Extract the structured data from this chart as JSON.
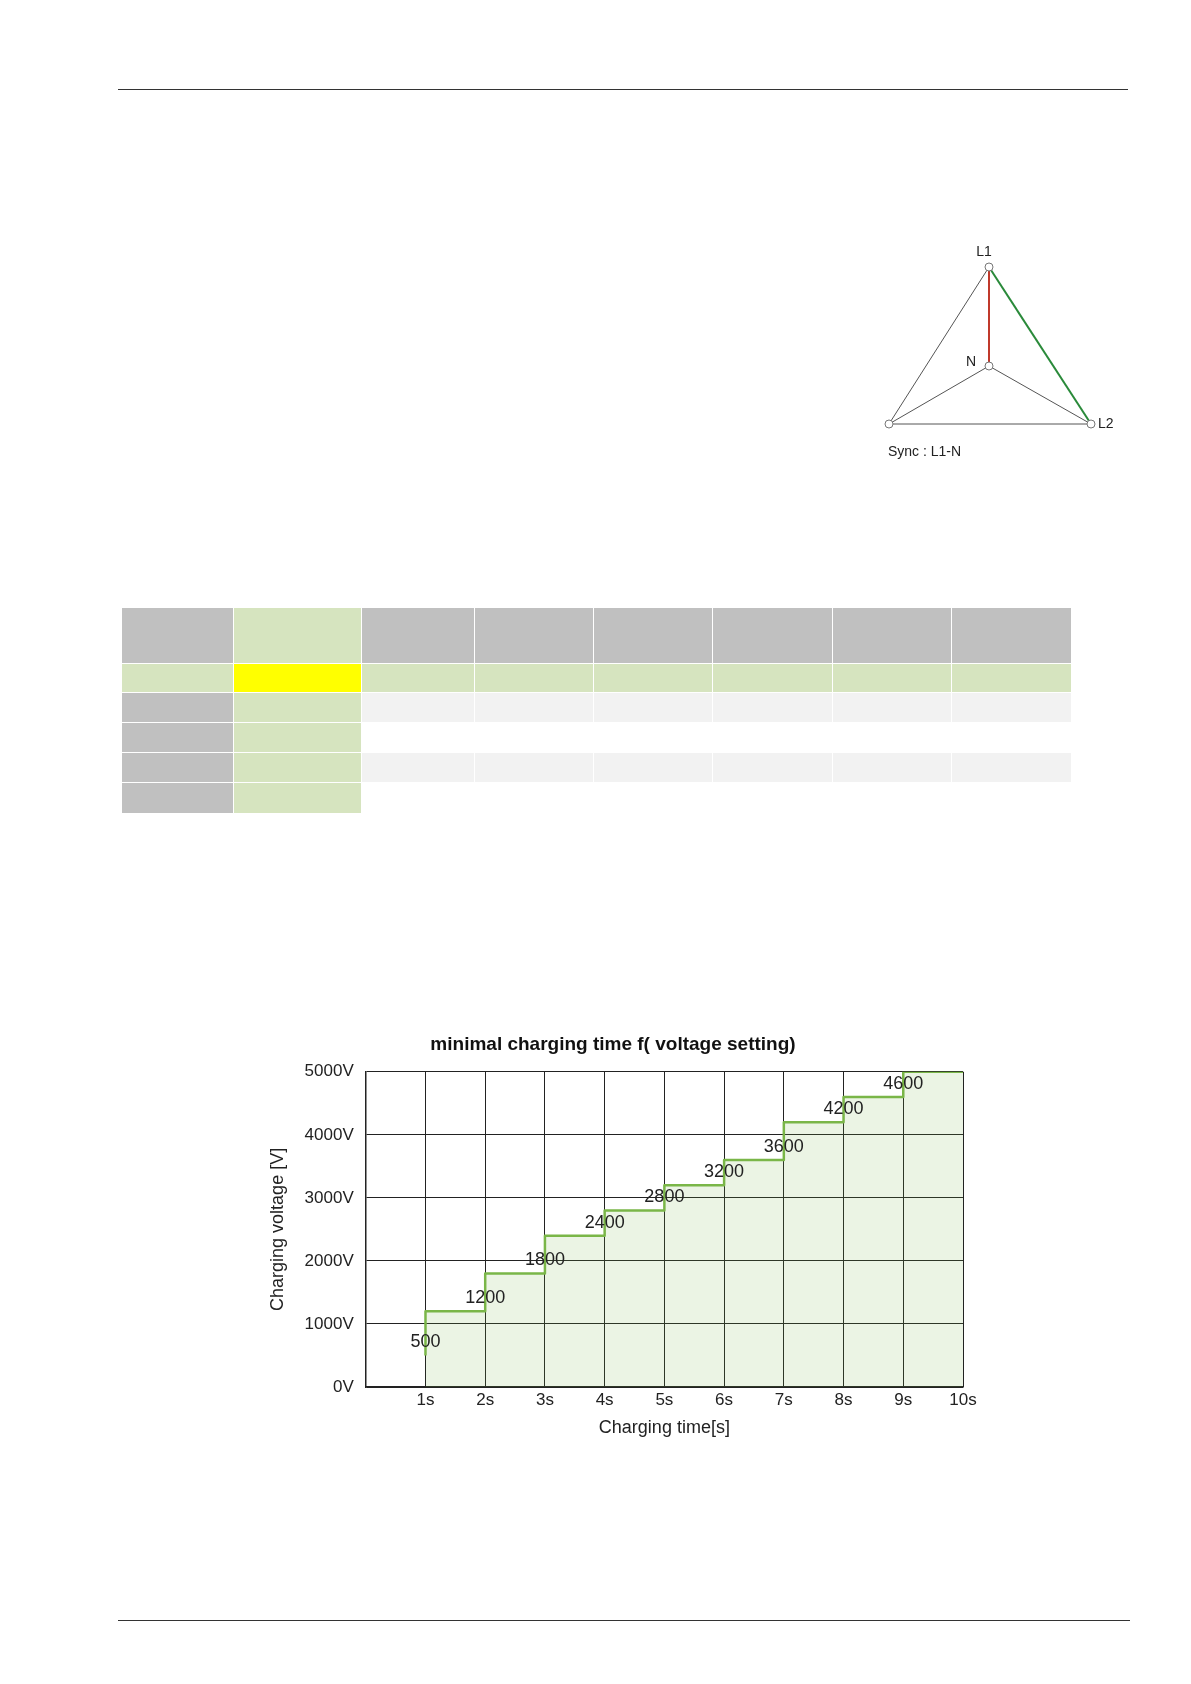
{
  "chart_data": [
    {
      "type": "other",
      "annotations": [
        "L1",
        "N",
        "L2",
        "Sync : L1-N"
      ]
    },
    {
      "type": "step",
      "title": "minimal charging time f( voltage setting)",
      "xlabel": "Charging time[s]",
      "ylabel": "Charging voltage [V]",
      "x": [
        1,
        2,
        3,
        4,
        5,
        6,
        7,
        8,
        9,
        10
      ],
      "series": [
        {
          "color": "#7ab648",
          "values": [
            500,
            1200,
            1800,
            2400,
            2800,
            3200,
            3600,
            4200,
            4600,
            5000
          ],
          "value_labels": [
            "500",
            "1200",
            "1800",
            "2400",
            "2800",
            "3200",
            "3600",
            "4200",
            "4600",
            null
          ]
        }
      ],
      "xlim": [
        0,
        10
      ],
      "xticks": [
        {
          "value": 1,
          "label": "1s"
        },
        {
          "value": 2,
          "label": "2s"
        },
        {
          "value": 3,
          "label": "3s"
        },
        {
          "value": 4,
          "label": "4s"
        },
        {
          "value": 5,
          "label": "5s"
        },
        {
          "value": 6,
          "label": "6s"
        },
        {
          "value": 7,
          "label": "7s"
        },
        {
          "value": 8,
          "label": "8s"
        },
        {
          "value": 9,
          "label": "9s"
        },
        {
          "value": 10,
          "label": "10s"
        }
      ],
      "ylim": [
        0,
        5000
      ],
      "yticks": [
        {
          "value": 0,
          "label": "0V"
        },
        {
          "value": 1000,
          "label": "1000V"
        },
        {
          "value": 2000,
          "label": "2000V"
        },
        {
          "value": 3000,
          "label": "3000V"
        },
        {
          "value": 4000,
          "label": "4000V"
        },
        {
          "value": 5000,
          "label": "5000V"
        }
      ],
      "grid": true,
      "legend": false,
      "marker": "none"
    }
  ]
}
